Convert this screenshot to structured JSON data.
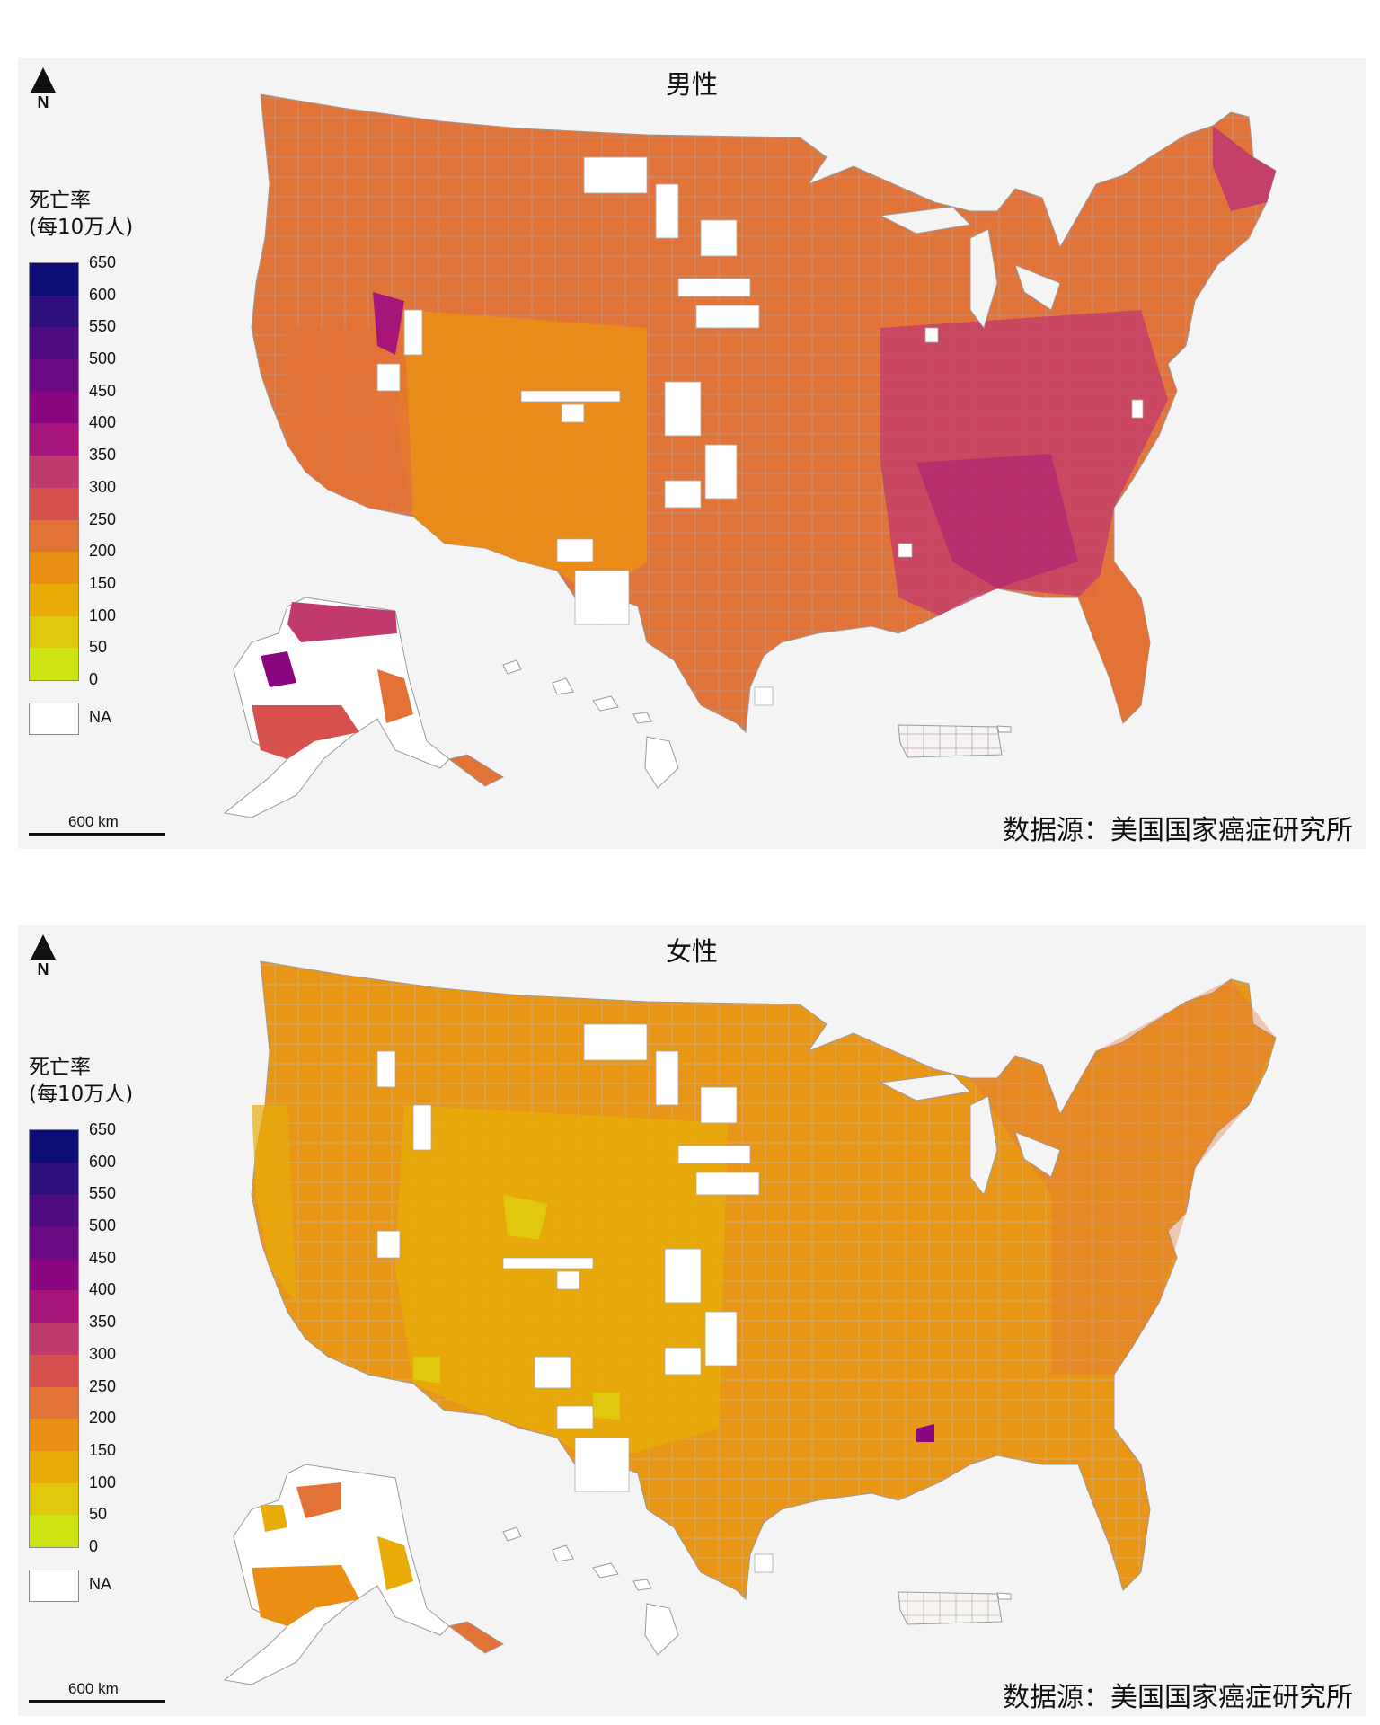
{
  "panels": [
    {
      "title": "男性",
      "north_label": "N",
      "legend_title_line1": "死亡率",
      "legend_title_line2": "(每10万人)",
      "legend_ticks": [
        "650",
        "600",
        "550",
        "500",
        "450",
        "400",
        "350",
        "300",
        "250",
        "200",
        "150",
        "100",
        "50",
        "0"
      ],
      "legend_colors": [
        "#0c0d74",
        "#2c0f7c",
        "#4e0a80",
        "#6a0a84",
        "#8a0580",
        "#a8157a",
        "#c03a6e",
        "#d6504d",
        "#e37237",
        "#ea8e14",
        "#e8ab08",
        "#e0c80c",
        "#cde412"
      ],
      "na_label": "NA",
      "scale_label": "600 km",
      "source": "数据源：美国国家癌症研究所",
      "dominant_color": "#e2743a"
    },
    {
      "title": "女性",
      "north_label": "N",
      "legend_title_line1": "死亡率",
      "legend_title_line2": "(每10万人)",
      "legend_ticks": [
        "650",
        "600",
        "550",
        "500",
        "450",
        "400",
        "350",
        "300",
        "250",
        "200",
        "150",
        "100",
        "50",
        "0"
      ],
      "legend_colors": [
        "#0c0d74",
        "#2c0f7c",
        "#4e0a80",
        "#6a0a84",
        "#8a0580",
        "#a8157a",
        "#c03a6e",
        "#d6504d",
        "#e37237",
        "#ea8e14",
        "#e8ab08",
        "#e0c80c",
        "#cde412"
      ],
      "na_label": "NA",
      "scale_label": "600 km",
      "source": "数据源：美国国家癌症研究所",
      "dominant_color": "#e99617"
    }
  ]
}
